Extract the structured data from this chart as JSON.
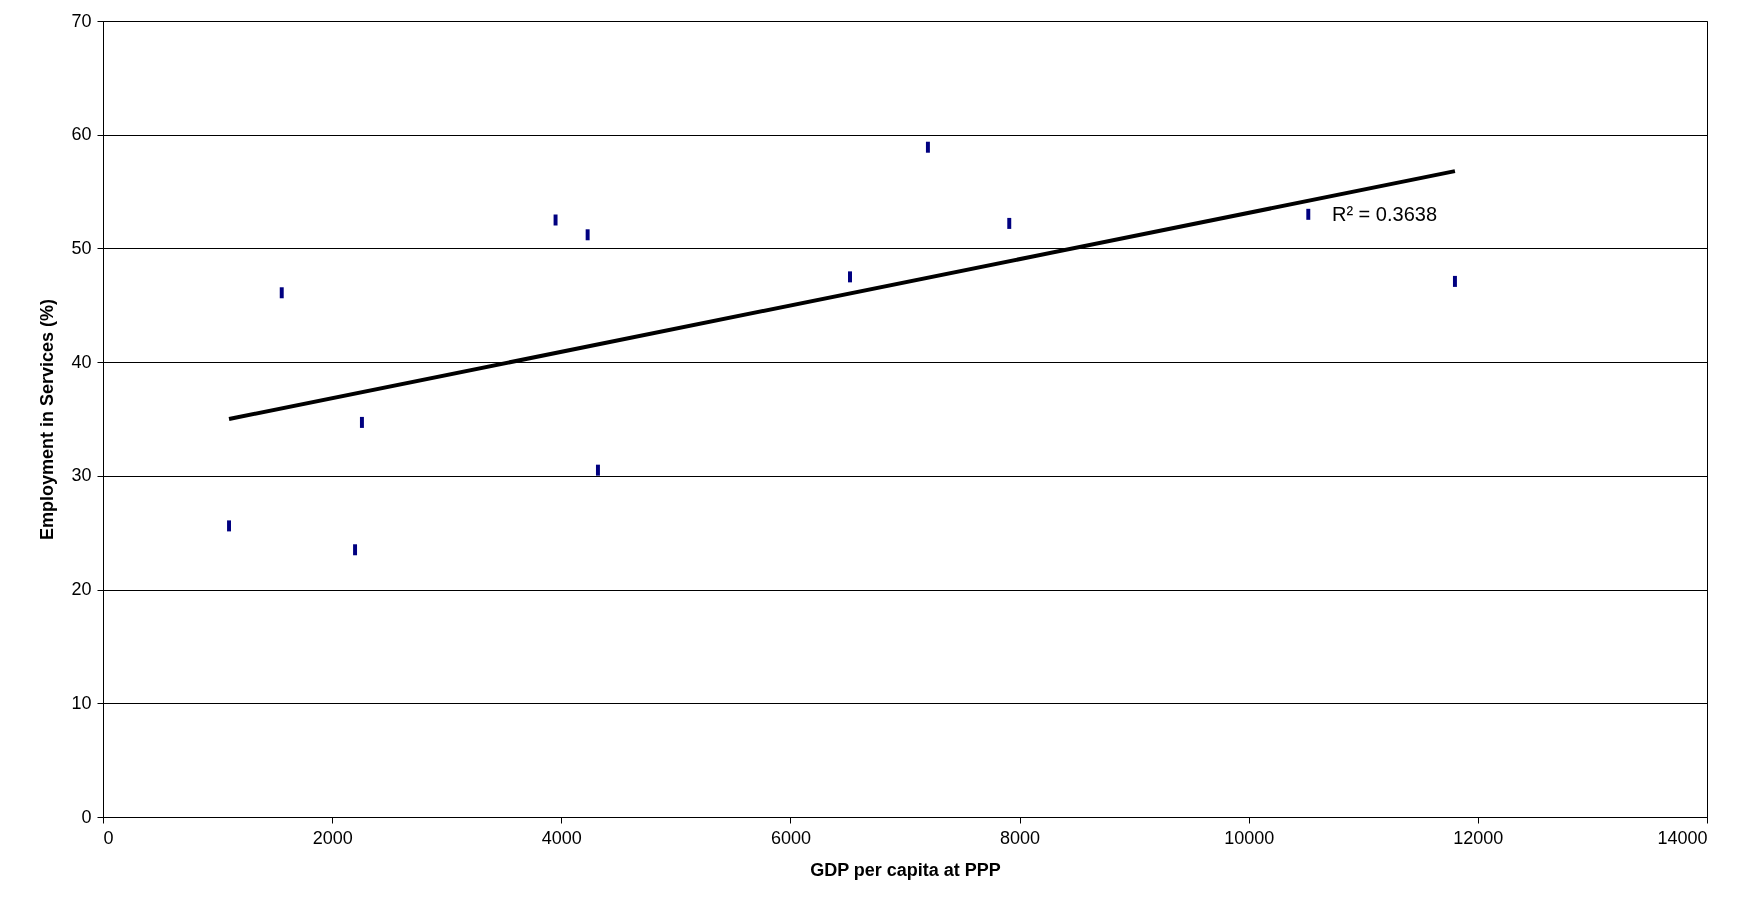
{
  "chart_data": {
    "type": "scatter",
    "xlabel": "GDP per capita at PPP",
    "ylabel": "Employment in Services (%)",
    "xlim": [
      0,
      14000
    ],
    "xticks": [
      0,
      2000,
      4000,
      6000,
      8000,
      10000,
      12000,
      14000
    ],
    "ylim": [
      0,
      70
    ],
    "yticks": [
      0,
      10,
      20,
      30,
      40,
      50,
      60,
      70
    ],
    "grid": "y",
    "x": [
      1100,
      1560,
      2200,
      2260,
      3950,
      4230,
      4320,
      6520,
      7200,
      7910,
      10520,
      11800
    ],
    "series": [
      {
        "color": "#000080",
        "values": [
          25.6,
          46.1,
          23.5,
          34.7,
          52.5,
          51.2,
          30.5,
          47.5,
          58.9,
          52.2,
          53.0,
          47.1
        ]
      },
      {
        "type": "line",
        "color": "#000000",
        "x": [
          1100,
          11800
        ],
        "values": [
          35.0,
          56.8
        ]
      }
    ],
    "annotations": [
      "R² = 0.3638"
    ]
  }
}
